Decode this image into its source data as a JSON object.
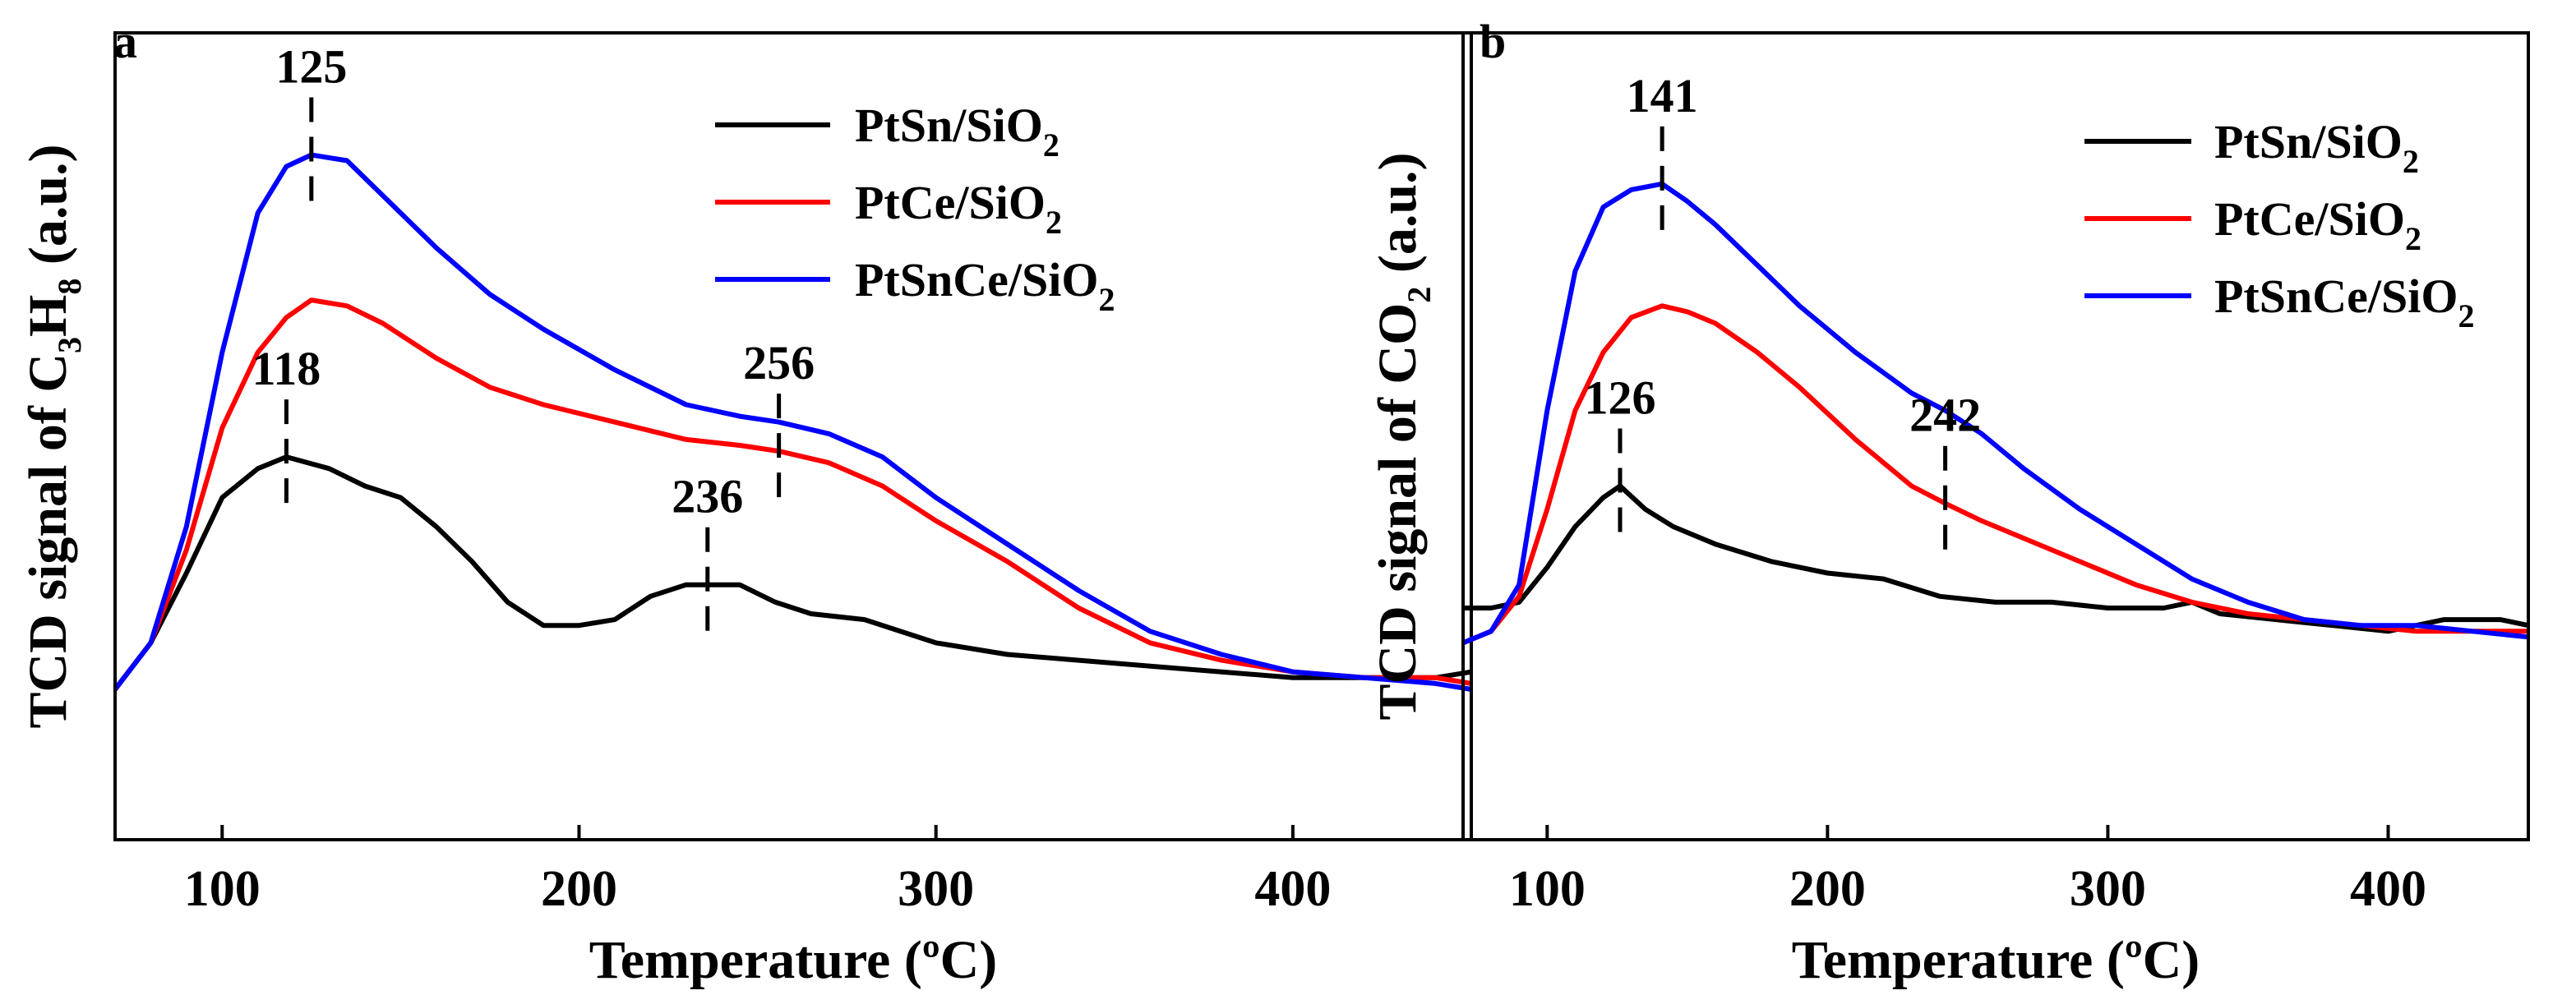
{
  "figure": {
    "panels": [
      {
        "letter": "a",
        "ylabel_prefix": "TCD signal of C",
        "ylabel_sub1": "3",
        "ylabel_mid": "H",
        "ylabel_sub2": "8",
        "ylabel_suffix": " (a.u.)"
      },
      {
        "letter": "b",
        "ylabel_prefix": "TCD signal of CO",
        "ylabel_sub1": "2",
        "ylabel_mid": "",
        "ylabel_sub2": "",
        "ylabel_suffix": " (a.u.)"
      }
    ],
    "xlabel": "Temperature (ºC)",
    "legend": [
      {
        "pre": "PtSn/SiO",
        "sub": "2",
        "color": "#000000"
      },
      {
        "pre": "PtCe/SiO",
        "sub": "2",
        "color": "#ff0000"
      },
      {
        "pre": "PtSnCe/SiO",
        "sub": "2",
        "color": "#0000ff"
      }
    ]
  },
  "chart_data": [
    {
      "type": "line",
      "panel": "a",
      "title": "",
      "xlabel": "Temperature (ºC)",
      "ylabel": "TCD signal of C3H8 (a.u.)",
      "xlim": [
        70,
        450
      ],
      "ylim": [
        0,
        1
      ],
      "xticks": [
        100,
        200,
        300,
        400
      ],
      "legend_position": "top-right",
      "series": [
        {
          "name": "PtSn/SiO2",
          "color": "#000000",
          "x": [
            70,
            80,
            90,
            100,
            110,
            118,
            130,
            140,
            150,
            160,
            170,
            180,
            190,
            200,
            210,
            220,
            230,
            236,
            245,
            255,
            265,
            280,
            300,
            320,
            340,
            360,
            380,
            400,
            420,
            440,
            450
          ],
          "y": [
            0.12,
            0.2,
            0.32,
            0.45,
            0.5,
            0.52,
            0.5,
            0.47,
            0.45,
            0.4,
            0.34,
            0.27,
            0.23,
            0.23,
            0.24,
            0.28,
            0.3,
            0.3,
            0.3,
            0.27,
            0.25,
            0.24,
            0.2,
            0.18,
            0.17,
            0.16,
            0.15,
            0.14,
            0.14,
            0.14,
            0.15
          ]
        },
        {
          "name": "PtCe/SiO2",
          "color": "#ff0000",
          "x": [
            70,
            80,
            90,
            100,
            110,
            118,
            125,
            135,
            145,
            160,
            175,
            190,
            210,
            230,
            245,
            256,
            270,
            285,
            300,
            320,
            340,
            360,
            380,
            400,
            420,
            440,
            450
          ],
          "y": [
            0.12,
            0.2,
            0.36,
            0.57,
            0.7,
            0.76,
            0.79,
            0.78,
            0.75,
            0.69,
            0.64,
            0.61,
            0.58,
            0.55,
            0.54,
            0.53,
            0.51,
            0.47,
            0.41,
            0.34,
            0.26,
            0.2,
            0.17,
            0.15,
            0.14,
            0.14,
            0.13
          ]
        },
        {
          "name": "PtSnCe/SiO2",
          "color": "#0000ff",
          "x": [
            70,
            80,
            90,
            100,
            110,
            118,
            125,
            135,
            145,
            160,
            175,
            190,
            210,
            230,
            245,
            256,
            270,
            285,
            300,
            320,
            340,
            360,
            380,
            400,
            420,
            440,
            450
          ],
          "y": [
            0.12,
            0.2,
            0.4,
            0.7,
            0.94,
            1.02,
            1.04,
            1.03,
            0.97,
            0.88,
            0.8,
            0.74,
            0.67,
            0.61,
            0.59,
            0.58,
            0.56,
            0.52,
            0.45,
            0.37,
            0.29,
            0.22,
            0.18,
            0.15,
            0.14,
            0.13,
            0.12
          ]
        }
      ],
      "annotations": [
        {
          "text": "125",
          "x": 125,
          "series": "PtSnCe/SiO2"
        },
        {
          "text": "118",
          "x": 118,
          "series": "PtSn/SiO2"
        },
        {
          "text": "236",
          "x": 236,
          "series": "PtSn/SiO2"
        },
        {
          "text": "256",
          "x": 256,
          "series": "PtCe/SiO2"
        }
      ]
    },
    {
      "type": "line",
      "panel": "b",
      "title": "",
      "xlabel": "Temperature (ºC)",
      "ylabel": "TCD signal of CO2 (a.u.)",
      "xlim": [
        70,
        450
      ],
      "ylim": [
        0,
        1
      ],
      "xticks": [
        100,
        200,
        300,
        400
      ],
      "legend_position": "top-right",
      "series": [
        {
          "name": "PtSn/SiO2",
          "color": "#000000",
          "x": [
            70,
            80,
            90,
            100,
            110,
            120,
            126,
            135,
            145,
            160,
            180,
            200,
            220,
            240,
            260,
            280,
            300,
            320,
            330,
            340,
            360,
            380,
            400,
            420,
            440,
            450
          ],
          "y": [
            0.26,
            0.26,
            0.27,
            0.33,
            0.4,
            0.45,
            0.47,
            0.43,
            0.4,
            0.37,
            0.34,
            0.32,
            0.31,
            0.28,
            0.27,
            0.27,
            0.26,
            0.26,
            0.27,
            0.25,
            0.24,
            0.23,
            0.22,
            0.24,
            0.24,
            0.23
          ]
        },
        {
          "name": "PtCe/SiO2",
          "color": "#ff0000",
          "x": [
            70,
            80,
            90,
            100,
            110,
            120,
            130,
            141,
            150,
            160,
            175,
            190,
            210,
            230,
            242,
            255,
            270,
            290,
            310,
            330,
            350,
            370,
            390,
            410,
            430,
            450
          ],
          "y": [
            0.2,
            0.22,
            0.28,
            0.43,
            0.6,
            0.7,
            0.76,
            0.78,
            0.77,
            0.75,
            0.7,
            0.64,
            0.55,
            0.47,
            0.44,
            0.41,
            0.38,
            0.34,
            0.3,
            0.27,
            0.25,
            0.24,
            0.23,
            0.22,
            0.22,
            0.22
          ]
        },
        {
          "name": "PtSnCe/SiO2",
          "color": "#0000ff",
          "x": [
            70,
            80,
            90,
            100,
            110,
            120,
            130,
            141,
            150,
            160,
            175,
            190,
            210,
            230,
            242,
            255,
            270,
            290,
            310,
            330,
            350,
            370,
            390,
            410,
            430,
            450
          ],
          "y": [
            0.2,
            0.22,
            0.3,
            0.6,
            0.84,
            0.95,
            0.98,
            0.99,
            0.96,
            0.92,
            0.85,
            0.78,
            0.7,
            0.63,
            0.6,
            0.56,
            0.5,
            0.43,
            0.37,
            0.31,
            0.27,
            0.24,
            0.23,
            0.23,
            0.22,
            0.21
          ]
        }
      ],
      "annotations": [
        {
          "text": "141",
          "x": 141,
          "series": "PtSnCe/SiO2"
        },
        {
          "text": "126",
          "x": 126,
          "series": "PtSn/SiO2"
        },
        {
          "text": "242",
          "x": 242,
          "series": "PtCe/SiO2"
        }
      ]
    }
  ]
}
